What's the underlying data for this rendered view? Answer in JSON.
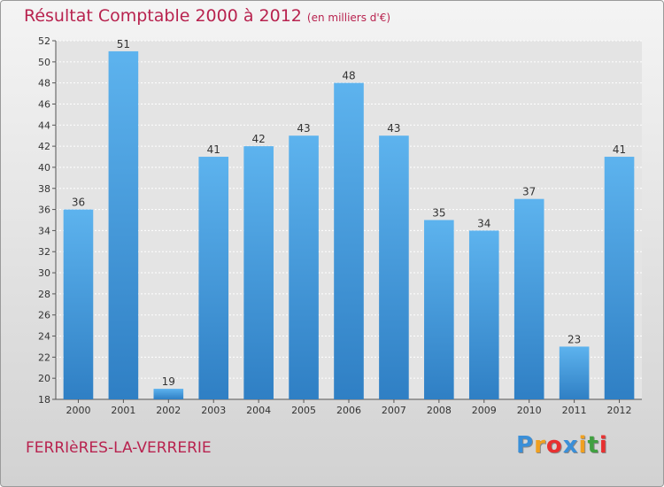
{
  "title": "Résultat Comptable 2000 à 2012",
  "subtitle": "(en milliers d'€)",
  "commune": "FERRIèRES-LA-VERRERIE",
  "logo": {
    "letters": [
      "P",
      "r",
      "o",
      "x",
      "i",
      "t",
      "i"
    ],
    "colors": [
      "#3a8fd8",
      "#f0a020",
      "#e83030",
      "#3a8fd8",
      "#f0a020",
      "#40a040",
      "#e83030"
    ]
  },
  "chart_data": {
    "type": "bar",
    "categories": [
      "2000",
      "2001",
      "2002",
      "2003",
      "2004",
      "2005",
      "2006",
      "2007",
      "2008",
      "2009",
      "2010",
      "2011",
      "2012"
    ],
    "values": [
      36,
      51,
      19,
      41,
      42,
      43,
      48,
      43,
      35,
      34,
      37,
      23,
      41
    ],
    "ylim": [
      18,
      52
    ],
    "yticks": [
      18,
      20,
      22,
      24,
      26,
      28,
      30,
      32,
      34,
      36,
      38,
      40,
      42,
      44,
      46,
      48,
      50,
      52
    ],
    "grid": true,
    "bar_color": "#4aa3e6",
    "xlabel": "",
    "ylabel": ""
  }
}
